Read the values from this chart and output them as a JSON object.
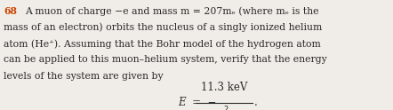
{
  "bg_color": "#f0ede8",
  "number_color": "#cc4400",
  "number_text": "68",
  "body_color": "#2a2a2a",
  "lines": [
    "A muon of charge −e and mass m = 207mₑ (where mₑ is the",
    "mass of an electron) orbits the nucleus of a singly ionized helium",
    "atom (He⁺). Assuming that the Bohr model of the hydrogen atom",
    "can be applied to this muon–helium system, verify that the energy",
    "levels of the system are given by"
  ],
  "formula_left": "E  =  −",
  "formula_numerator": "11.3 keV",
  "formula_denominator": "n",
  "formula_period": ".",
  "font_size_body": 7.8,
  "font_size_formula": 8.5,
  "figwidth": 4.42,
  "figheight": 1.24,
  "dpi": 100
}
